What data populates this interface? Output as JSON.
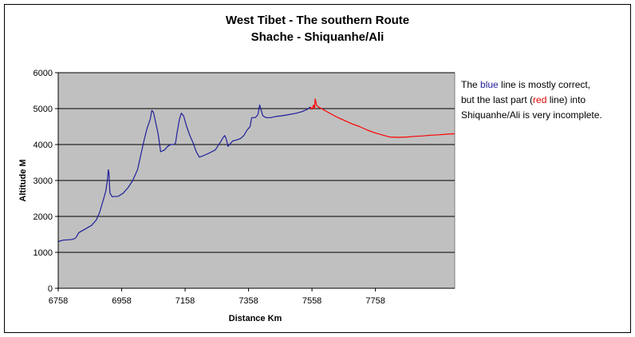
{
  "chart_data": {
    "type": "line",
    "title": "West Tibet - The southern Route",
    "subtitle": "Shache - Shiquanhe/Ali",
    "xlabel": "Distance Km",
    "ylabel": "Altitude M",
    "xlim": [
      6758,
      8008
    ],
    "ylim": [
      0,
      6000
    ],
    "x_ticks": [
      "6758",
      "6958",
      "7158",
      "7358",
      "7558",
      "7758"
    ],
    "y_ticks": [
      "0",
      "1000",
      "2000",
      "3000",
      "4000",
      "5000",
      "6000"
    ],
    "grid": true,
    "series": [
      {
        "color": "#1f1f9a",
        "points": [
          [
            6758,
            1300
          ],
          [
            6773,
            1340
          ],
          [
            6788,
            1350
          ],
          [
            6803,
            1360
          ],
          [
            6813,
            1400
          ],
          [
            6823,
            1550
          ],
          [
            6843,
            1650
          ],
          [
            6863,
            1750
          ],
          [
            6878,
            1900
          ],
          [
            6888,
            2100
          ],
          [
            6898,
            2400
          ],
          [
            6908,
            2700
          ],
          [
            6913,
            3000
          ],
          [
            6916,
            3300
          ],
          [
            6918,
            3200
          ],
          [
            6921,
            2650
          ],
          [
            6928,
            2550
          ],
          [
            6948,
            2560
          ],
          [
            6963,
            2650
          ],
          [
            6978,
            2800
          ],
          [
            6993,
            3000
          ],
          [
            7008,
            3300
          ],
          [
            7018,
            3700
          ],
          [
            7028,
            4100
          ],
          [
            7038,
            4450
          ],
          [
            7048,
            4700
          ],
          [
            7053,
            4950
          ],
          [
            7058,
            4900
          ],
          [
            7063,
            4700
          ],
          [
            7073,
            4300
          ],
          [
            7081,
            3800
          ],
          [
            7093,
            3850
          ],
          [
            7103,
            3950
          ],
          [
            7113,
            4000
          ],
          [
            7123,
            4000
          ],
          [
            7128,
            4050
          ],
          [
            7133,
            4350
          ],
          [
            7140,
            4700
          ],
          [
            7146,
            4870
          ],
          [
            7153,
            4800
          ],
          [
            7163,
            4500
          ],
          [
            7173,
            4250
          ],
          [
            7183,
            4050
          ],
          [
            7193,
            3800
          ],
          [
            7203,
            3650
          ],
          [
            7218,
            3700
          ],
          [
            7238,
            3780
          ],
          [
            7253,
            3850
          ],
          [
            7268,
            4050
          ],
          [
            7278,
            4200
          ],
          [
            7283,
            4250
          ],
          [
            7288,
            4150
          ],
          [
            7293,
            3950
          ],
          [
            7298,
            4000
          ],
          [
            7308,
            4100
          ],
          [
            7318,
            4120
          ],
          [
            7333,
            4170
          ],
          [
            7343,
            4250
          ],
          [
            7353,
            4400
          ],
          [
            7363,
            4500
          ],
          [
            7368,
            4750
          ],
          [
            7378,
            4750
          ],
          [
            7383,
            4780
          ],
          [
            7388,
            4850
          ],
          [
            7393,
            5100
          ],
          [
            7398,
            4950
          ],
          [
            7403,
            4800
          ],
          [
            7413,
            4750
          ],
          [
            7428,
            4750
          ],
          [
            7443,
            4780
          ],
          [
            7463,
            4800
          ],
          [
            7483,
            4830
          ],
          [
            7508,
            4870
          ],
          [
            7528,
            4920
          ],
          [
            7543,
            4980
          ],
          [
            7553,
            5050
          ]
        ]
      },
      {
        "color": "#ff0000",
        "points": [
          [
            7553,
            5050
          ],
          [
            7558,
            4980
          ],
          [
            7563,
            5100
          ],
          [
            7566,
            5000
          ],
          [
            7568,
            5270
          ],
          [
            7573,
            5080
          ],
          [
            7578,
            5050
          ],
          [
            7588,
            5000
          ],
          [
            7608,
            4900
          ],
          [
            7633,
            4780
          ],
          [
            7658,
            4680
          ],
          [
            7683,
            4580
          ],
          [
            7708,
            4500
          ],
          [
            7733,
            4400
          ],
          [
            7758,
            4320
          ],
          [
            7783,
            4260
          ],
          [
            7803,
            4210
          ],
          [
            7833,
            4200
          ],
          [
            7858,
            4210
          ],
          [
            7883,
            4230
          ],
          [
            7908,
            4240
          ],
          [
            7933,
            4260
          ],
          [
            7958,
            4270
          ],
          [
            7983,
            4290
          ],
          [
            8008,
            4300
          ]
        ]
      }
    ]
  },
  "note": {
    "l1a": "The ",
    "l1b": "blue",
    "l1c": " line is mostly correct,",
    "l2a": " but the last part (",
    "l2b": "red",
    "l2c": " line) into",
    "l3": "Shiquanhe/Ali is very incomplete."
  }
}
